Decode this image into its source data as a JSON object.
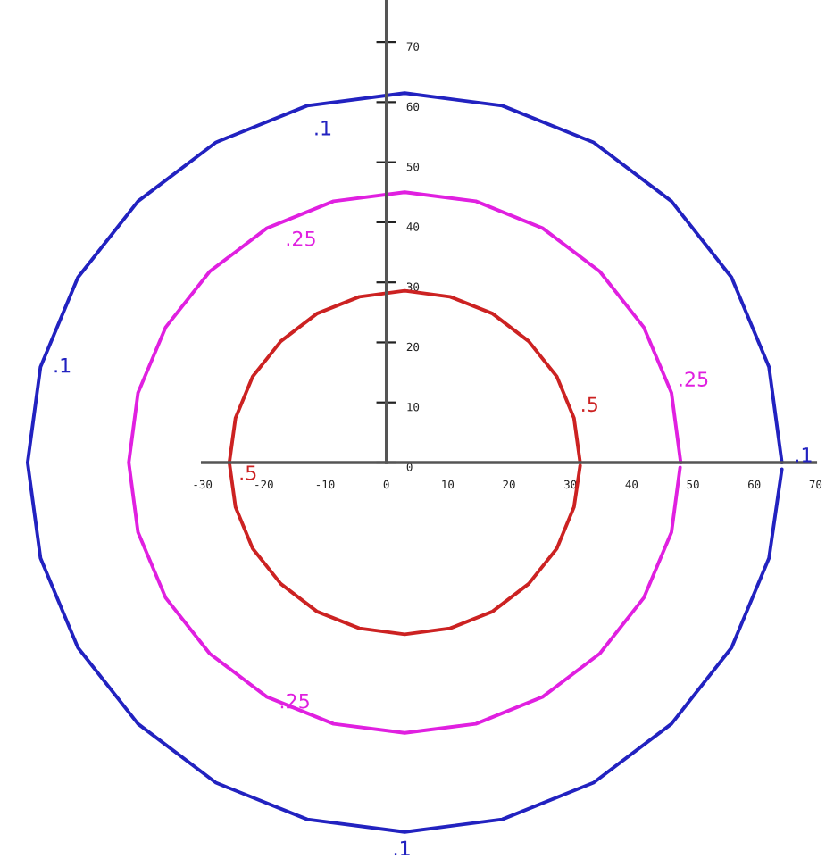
{
  "chart_data": {
    "type": "line",
    "xlim": [
      -63,
      73
    ],
    "ylim": [
      -66,
      77
    ],
    "xticks": [
      -30,
      -20,
      -10,
      0,
      10,
      20,
      30,
      40,
      50,
      60,
      70
    ],
    "yticks": [
      0,
      10,
      20,
      30,
      40,
      50,
      60,
      70
    ],
    "grid": false,
    "marker": "none",
    "line_style": "solid",
    "series": [
      {
        "name": ".1",
        "color": "#2222c0",
        "x": [
          64.5,
          62.4,
          56.3,
          46.5,
          33.8,
          18.9,
          3,
          -12.9,
          -27.8,
          -40.5,
          -50.3,
          -56.4,
          -58.5,
          -56.4,
          -50.3,
          -40.5,
          -27.8,
          -12.9,
          3,
          18.9,
          33.8,
          46.5,
          56.3,
          62.4,
          64.5
        ],
        "values": [
          0,
          15.9,
          30.8,
          43.5,
          53.3,
          59.4,
          61.5,
          59.4,
          53.3,
          43.5,
          30.8,
          15.9,
          0,
          -15.9,
          -30.8,
          -43.5,
          -53.3,
          -59.4,
          -61.5,
          -59.4,
          -53.3,
          -43.5,
          -30.8,
          -15.9,
          -1.1
        ]
      },
      {
        "name": ".25",
        "color": "#e020e0",
        "x": [
          48,
          46.5,
          42,
          34.8,
          25.5,
          14.6,
          3,
          -8.6,
          -19.5,
          -28.8,
          -36,
          -40.5,
          -42,
          -40.5,
          -36,
          -28.8,
          -19.5,
          -8.6,
          3,
          14.6,
          25.5,
          34.8,
          42,
          46.5,
          47.9
        ],
        "values": [
          0,
          11.6,
          22.5,
          31.8,
          39,
          43.5,
          45,
          43.5,
          39,
          31.8,
          22.5,
          11.6,
          0,
          -11.6,
          -22.5,
          -31.8,
          -39,
          -43.5,
          -45,
          -43.5,
          -39,
          -31.8,
          -22.5,
          -11.6,
          -0.8
        ]
      },
      {
        "name": ".5",
        "color": "#cc2222",
        "x": [
          31.6,
          30.6,
          27.8,
          23.2,
          17.3,
          10.4,
          3,
          -4.4,
          -11.3,
          -17.2,
          -21.8,
          -24.6,
          -25.6,
          -24.6,
          -21.8,
          -17.2,
          -11.3,
          -4.4,
          3,
          10.4,
          17.3,
          23.2,
          27.8,
          30.6,
          31.6
        ],
        "values": [
          0,
          7.4,
          14.3,
          20.2,
          24.8,
          27.6,
          28.6,
          27.6,
          24.8,
          20.2,
          14.3,
          7.4,
          0,
          -7.4,
          -14.3,
          -20.2,
          -24.8,
          -27.6,
          -28.6,
          -27.6,
          -24.8,
          -20.2,
          -14.3,
          -7.4,
          -0.5
        ]
      }
    ]
  }
}
